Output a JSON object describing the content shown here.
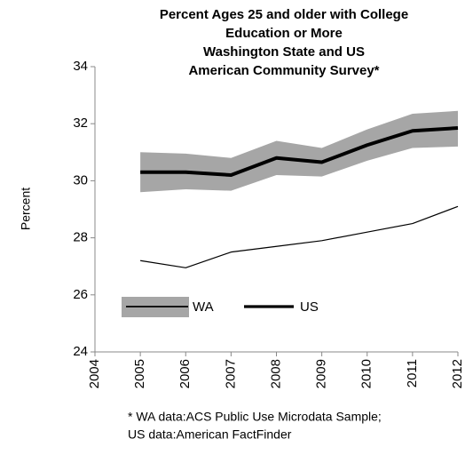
{
  "chart_data": {
    "type": "line",
    "title": [
      "Percent Ages 25 and older with College",
      "Education  or More",
      "Washington State and US",
      "American Community Survey*"
    ],
    "ylabel": "Percent",
    "footnote": [
      "* WA data:ACS Public Use Microdata Sample;",
      "US data:American FactFinder"
    ],
    "x": [
      2005,
      2006,
      2007,
      2008,
      2009,
      2010,
      2011,
      2012
    ],
    "xlim": [
      2004,
      2012
    ],
    "xticks": [
      2004,
      2005,
      2006,
      2007,
      2008,
      2009,
      2010,
      2011,
      2012
    ],
    "ylim": [
      24,
      34
    ],
    "yticks": [
      24,
      26,
      28,
      30,
      32,
      34
    ],
    "grid": false,
    "series": [
      {
        "name": "WA",
        "color": "#000000",
        "line_width": 4,
        "band_color": "#a6a6a6",
        "values": [
          30.3,
          30.3,
          30.2,
          30.8,
          30.65,
          31.25,
          31.75,
          31.85
        ],
        "upper": [
          31.0,
          30.95,
          30.8,
          31.4,
          31.15,
          31.8,
          32.35,
          32.45
        ],
        "lower": [
          29.6,
          29.7,
          29.65,
          30.2,
          30.15,
          30.7,
          31.15,
          31.2
        ]
      },
      {
        "name": "US",
        "color": "#000000",
        "line_width": 1.2,
        "values": [
          27.2,
          26.95,
          27.5,
          27.7,
          27.9,
          28.2,
          28.5,
          29.1
        ]
      }
    ]
  }
}
